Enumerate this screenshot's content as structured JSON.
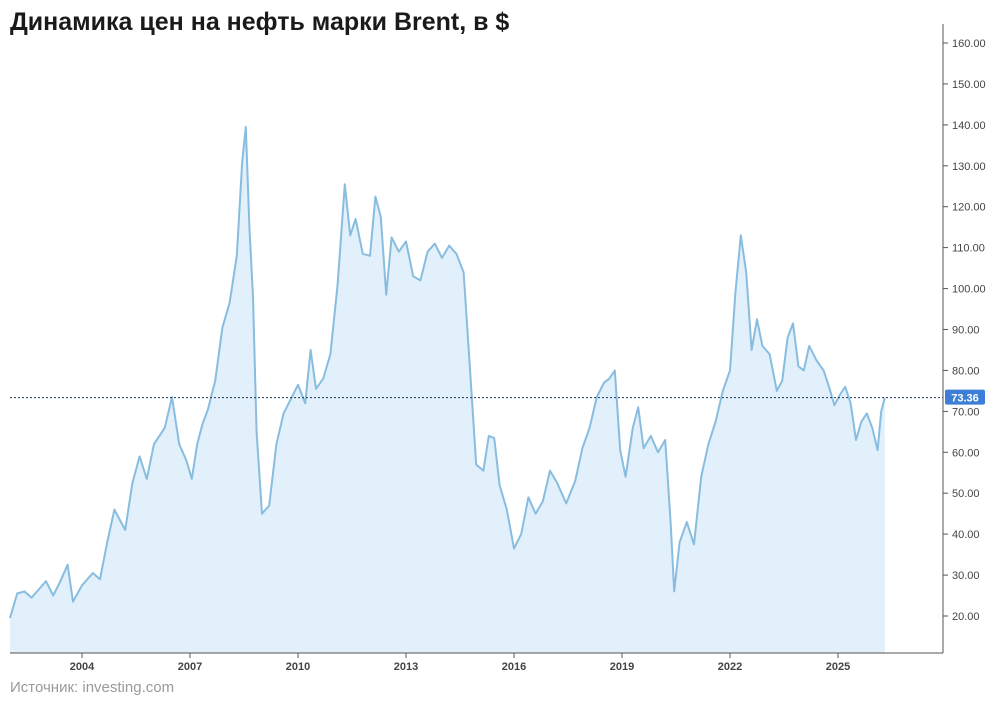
{
  "page": {
    "title": "Динамика цен на нефть марки Brent, в $",
    "source": "Источник: investing.com"
  },
  "colors": {
    "line": "#88bde0",
    "area": "#e1f0fb",
    "reference_line": "#1f3a5a",
    "badge": "#3d7fd6",
    "axis": "#555555"
  },
  "chart_data": {
    "type": "area",
    "title": "Динамика цен на нефть марки Brent, в $",
    "xlabel": "",
    "ylabel": "",
    "xlim": [
      2002.0,
      2026.8
    ],
    "ylim": [
      10,
      162
    ],
    "y_axis_position": "right",
    "grid": false,
    "yticks": [
      20,
      30,
      40,
      50,
      60,
      70,
      80,
      90,
      100,
      110,
      120,
      130,
      140,
      150,
      160
    ],
    "ytick_labels": [
      "20.00",
      "30.00",
      "40.00",
      "50.00",
      "60.00",
      "70.00",
      "80.00",
      "90.00",
      "100.00",
      "110.00",
      "120.00",
      "130.00",
      "140.00",
      "150.00",
      "160.00"
    ],
    "xticks": [
      2004,
      2007,
      2010,
      2013,
      2016,
      2019,
      2022,
      2025
    ],
    "xtick_labels": [
      "2004",
      "2007",
      "2010",
      "2013",
      "2016",
      "2019",
      "2022",
      "2025"
    ],
    "last_value": 73.36,
    "last_value_label": "73.36",
    "series": [
      {
        "name": "Brent",
        "points": [
          [
            2002.0,
            19.5
          ],
          [
            2002.2,
            25.5
          ],
          [
            2002.4,
            26
          ],
          [
            2002.6,
            24.5
          ],
          [
            2002.8,
            26.5
          ],
          [
            2003.0,
            28.5
          ],
          [
            2003.2,
            25
          ],
          [
            2003.4,
            28.5
          ],
          [
            2003.6,
            32.5
          ],
          [
            2003.75,
            23.5
          ],
          [
            2004.0,
            27.5
          ],
          [
            2004.3,
            30.5
          ],
          [
            2004.5,
            29
          ],
          [
            2004.7,
            38
          ],
          [
            2004.9,
            46
          ],
          [
            2005.2,
            41
          ],
          [
            2005.4,
            52.5
          ],
          [
            2005.6,
            59
          ],
          [
            2005.8,
            53.5
          ],
          [
            2006.0,
            62
          ],
          [
            2006.3,
            66
          ],
          [
            2006.5,
            73.5
          ],
          [
            2006.7,
            62
          ],
          [
            2006.9,
            58
          ],
          [
            2007.05,
            53.5
          ],
          [
            2007.2,
            62
          ],
          [
            2007.35,
            67
          ],
          [
            2007.5,
            70.5
          ],
          [
            2007.7,
            77.5
          ],
          [
            2007.9,
            90.5
          ],
          [
            2008.1,
            96.5
          ],
          [
            2008.3,
            108
          ],
          [
            2008.45,
            131
          ],
          [
            2008.55,
            139.5
          ],
          [
            2008.65,
            115
          ],
          [
            2008.75,
            98
          ],
          [
            2008.85,
            65
          ],
          [
            2009.0,
            45
          ],
          [
            2009.2,
            47
          ],
          [
            2009.4,
            62
          ],
          [
            2009.6,
            69.5
          ],
          [
            2009.8,
            73
          ],
          [
            2010.0,
            76.5
          ],
          [
            2010.2,
            72
          ],
          [
            2010.35,
            85
          ],
          [
            2010.5,
            75.5
          ],
          [
            2010.7,
            78
          ],
          [
            2010.9,
            84
          ],
          [
            2011.1,
            101
          ],
          [
            2011.3,
            125.5
          ],
          [
            2011.45,
            113
          ],
          [
            2011.6,
            117
          ],
          [
            2011.8,
            108.5
          ],
          [
            2012.0,
            108
          ],
          [
            2012.15,
            122.5
          ],
          [
            2012.3,
            117.5
          ],
          [
            2012.45,
            98.5
          ],
          [
            2012.6,
            112.5
          ],
          [
            2012.8,
            109
          ],
          [
            2013.0,
            111.5
          ],
          [
            2013.2,
            103
          ],
          [
            2013.4,
            102
          ],
          [
            2013.6,
            109
          ],
          [
            2013.8,
            111
          ],
          [
            2014.0,
            107.5
          ],
          [
            2014.2,
            110.5
          ],
          [
            2014.4,
            108.5
          ],
          [
            2014.6,
            104
          ],
          [
            2014.75,
            84
          ],
          [
            2014.95,
            57
          ],
          [
            2015.15,
            55.5
          ],
          [
            2015.3,
            64
          ],
          [
            2015.45,
            63.5
          ],
          [
            2015.6,
            52
          ],
          [
            2015.8,
            46
          ],
          [
            2016.0,
            36.5
          ],
          [
            2016.2,
            40
          ],
          [
            2016.4,
            49
          ],
          [
            2016.6,
            45
          ],
          [
            2016.8,
            48
          ],
          [
            2017.0,
            55.5
          ],
          [
            2017.2,
            52.5
          ],
          [
            2017.45,
            47.5
          ],
          [
            2017.7,
            53
          ],
          [
            2017.9,
            61
          ],
          [
            2018.1,
            66
          ],
          [
            2018.3,
            73.5
          ],
          [
            2018.5,
            77
          ],
          [
            2018.65,
            78
          ],
          [
            2018.8,
            80
          ],
          [
            2018.95,
            60.5
          ],
          [
            2019.1,
            54
          ],
          [
            2019.3,
            66
          ],
          [
            2019.45,
            71
          ],
          [
            2019.6,
            61
          ],
          [
            2019.8,
            64
          ],
          [
            2020.0,
            60
          ],
          [
            2020.2,
            63
          ],
          [
            2020.35,
            43
          ],
          [
            2020.45,
            26
          ],
          [
            2020.6,
            38
          ],
          [
            2020.8,
            43
          ],
          [
            2021.0,
            37.5
          ],
          [
            2021.2,
            54
          ],
          [
            2021.4,
            62
          ],
          [
            2021.6,
            67.5
          ],
          [
            2021.8,
            75
          ],
          [
            2022.0,
            80
          ],
          [
            2022.15,
            99
          ],
          [
            2022.3,
            113
          ],
          [
            2022.45,
            104
          ],
          [
            2022.6,
            85
          ],
          [
            2022.75,
            92.5
          ],
          [
            2022.9,
            86
          ],
          [
            2023.1,
            84
          ],
          [
            2023.3,
            75
          ],
          [
            2023.45,
            77.5
          ],
          [
            2023.6,
            88
          ],
          [
            2023.75,
            91.5
          ],
          [
            2023.9,
            81
          ],
          [
            2024.05,
            80
          ],
          [
            2024.2,
            86
          ],
          [
            2024.4,
            82.5
          ],
          [
            2024.6,
            80
          ],
          [
            2024.75,
            76
          ],
          [
            2024.9,
            71.5
          ],
          [
            2025.05,
            74
          ],
          [
            2025.2,
            76
          ],
          [
            2025.35,
            72
          ],
          [
            2025.5,
            63
          ],
          [
            2025.65,
            67.5
          ],
          [
            2025.8,
            69.5
          ],
          [
            2025.95,
            66
          ],
          [
            2026.1,
            60.5
          ],
          [
            2026.2,
            70
          ],
          [
            2026.3,
            73.36
          ]
        ]
      }
    ]
  }
}
